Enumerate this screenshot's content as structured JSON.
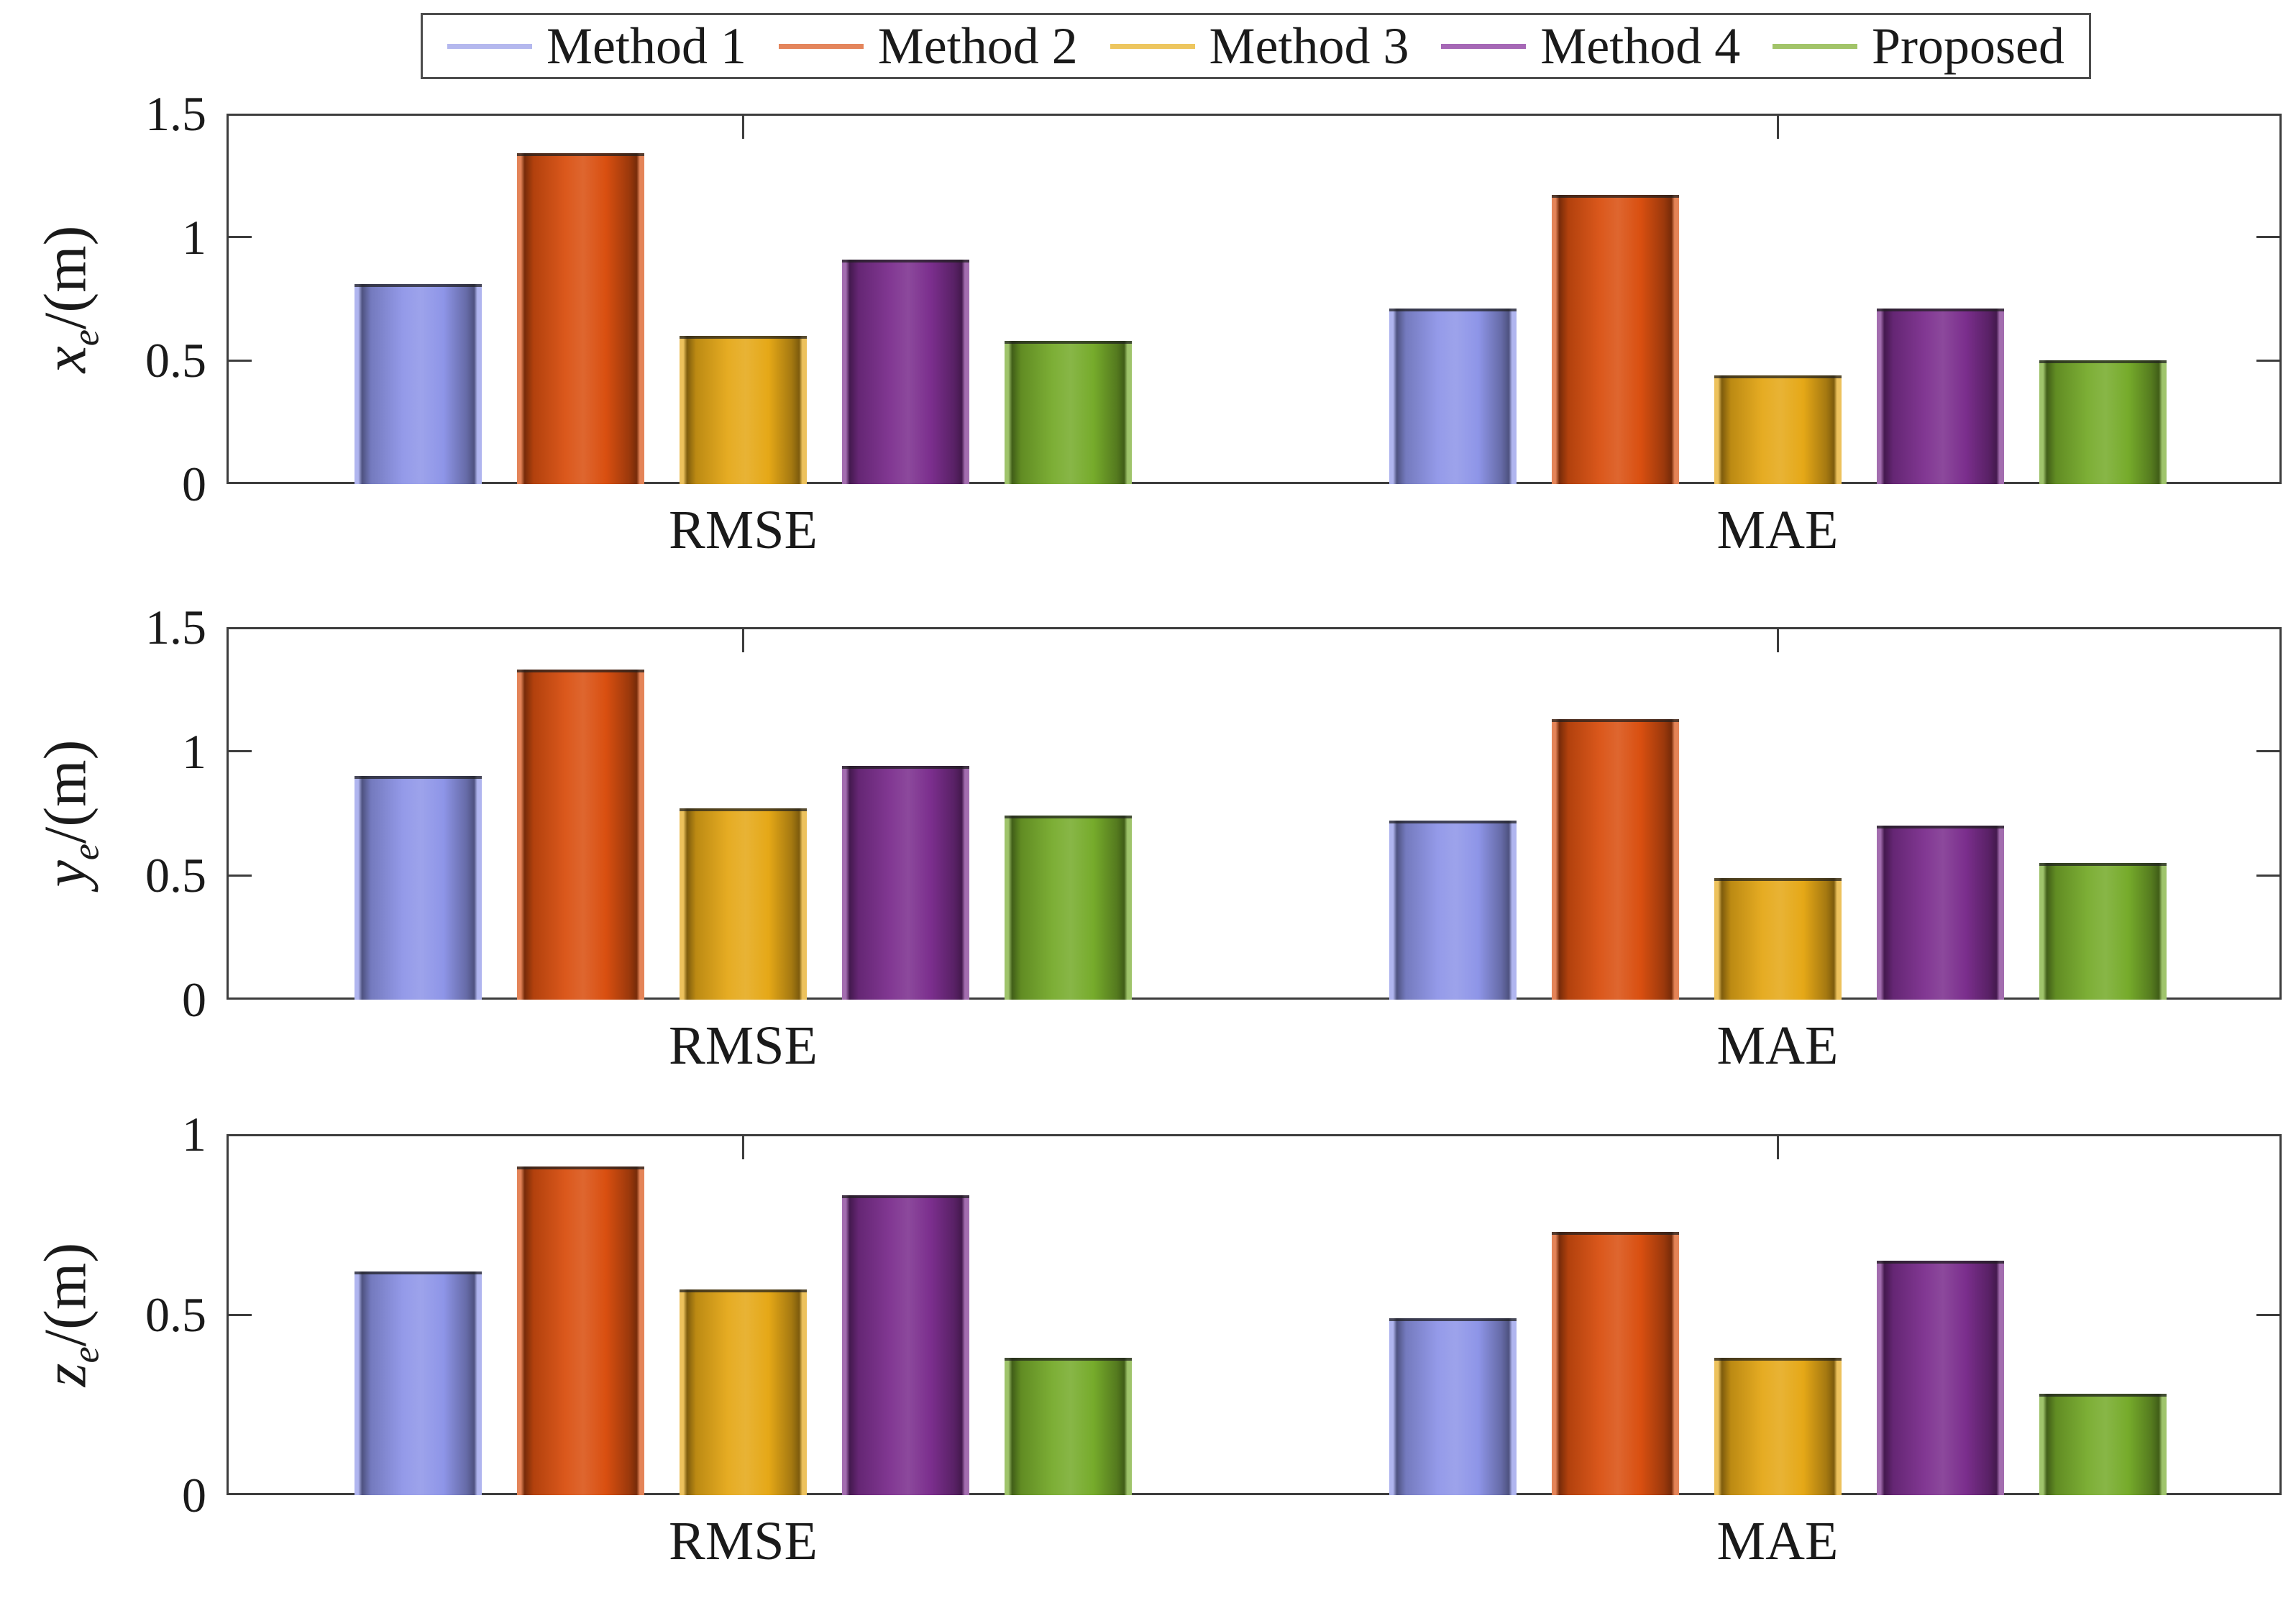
{
  "colors": {
    "background": "#ffffff",
    "spine": "#3d3d3d",
    "text": "#1a1a1a",
    "legend_border": "#4d4d4d"
  },
  "legend": {
    "entries": [
      {
        "label": "Method 1",
        "bar_color": "#8e95e8",
        "line_color": "#b4b8ee"
      },
      {
        "label": "Method 2",
        "bar_color": "#d94f10",
        "line_color": "#e4855c"
      },
      {
        "label": "Method 3",
        "bar_color": "#e5a817",
        "line_color": "#edc65f"
      },
      {
        "label": "Method 4",
        "bar_color": "#7b2e8d",
        "line_color": "#a668b6"
      },
      {
        "label": "Proposed",
        "bar_color": "#76ab2b",
        "line_color": "#a2c469"
      }
    ]
  },
  "chart_data": [
    {
      "type": "bar",
      "title": "",
      "xlabel": "",
      "ylabel": "x_e/(m)",
      "ylabel_var": "x",
      "ylabel_sub": "e",
      "ylabel_unit": "/(m)",
      "categories": [
        "RMSE",
        "MAE"
      ],
      "ylim": [
        0,
        1.5
      ],
      "yticks": [
        0,
        0.5,
        1,
        1.5
      ],
      "yticklabels": [
        "0",
        "0.5",
        "1",
        "1.5"
      ],
      "grid": false,
      "legend_position": "top-center",
      "series": [
        {
          "name": "Method 1",
          "values": [
            0.81,
            0.71
          ]
        },
        {
          "name": "Method 2",
          "values": [
            1.34,
            1.17
          ]
        },
        {
          "name": "Method 3",
          "values": [
            0.6,
            0.44
          ]
        },
        {
          "name": "Method 4",
          "values": [
            0.91,
            0.71
          ]
        },
        {
          "name": "Proposed",
          "values": [
            0.58,
            0.5
          ]
        }
      ]
    },
    {
      "type": "bar",
      "title": "",
      "xlabel": "",
      "ylabel": "y_e/(m)",
      "ylabel_var": "y",
      "ylabel_sub": "e",
      "ylabel_unit": "/(m)",
      "categories": [
        "RMSE",
        "MAE"
      ],
      "ylim": [
        0,
        1.5
      ],
      "yticks": [
        0,
        0.5,
        1,
        1.5
      ],
      "yticklabels": [
        "0",
        "0.5",
        "1",
        "1.5"
      ],
      "grid": false,
      "series": [
        {
          "name": "Method 1",
          "values": [
            0.9,
            0.72
          ]
        },
        {
          "name": "Method 2",
          "values": [
            1.33,
            1.13
          ]
        },
        {
          "name": "Method 3",
          "values": [
            0.77,
            0.49
          ]
        },
        {
          "name": "Method 4",
          "values": [
            0.94,
            0.7
          ]
        },
        {
          "name": "Proposed",
          "values": [
            0.74,
            0.55
          ]
        }
      ]
    },
    {
      "type": "bar",
      "title": "",
      "xlabel": "",
      "ylabel": "z_e/(m)",
      "ylabel_var": "z",
      "ylabel_sub": "e",
      "ylabel_unit": "/(m)",
      "categories": [
        "RMSE",
        "MAE"
      ],
      "ylim": [
        0,
        1
      ],
      "yticks": [
        0,
        0.5,
        1
      ],
      "yticklabels": [
        "0",
        "0.5",
        "1"
      ],
      "grid": false,
      "series": [
        {
          "name": "Method 1",
          "values": [
            0.62,
            0.49
          ]
        },
        {
          "name": "Method 2",
          "values": [
            0.91,
            0.73
          ]
        },
        {
          "name": "Method 3",
          "values": [
            0.57,
            0.38
          ]
        },
        {
          "name": "Method 4",
          "values": [
            0.83,
            0.65
          ]
        },
        {
          "name": "Proposed",
          "values": [
            0.38,
            0.28
          ]
        }
      ]
    }
  ]
}
